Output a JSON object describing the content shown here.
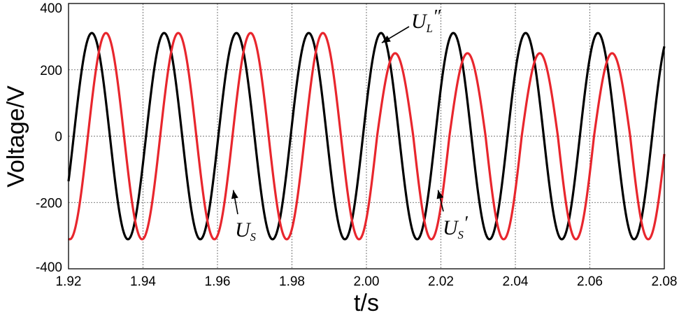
{
  "chart_data": {
    "type": "line",
    "title": "",
    "xlabel": "t/s",
    "ylabel": "Voltage/V",
    "xlim": [
      1.92,
      2.08
    ],
    "ylim": [
      -400,
      400
    ],
    "xticks": [
      "1.92",
      "1.94",
      "1.96",
      "1.98",
      "2.00",
      "2.02",
      "2.04",
      "2.06",
      "2.08"
    ],
    "yticks": [
      "400",
      "200",
      "0",
      "-200",
      "-400"
    ],
    "grid": true,
    "legend": "none",
    "series": [
      {
        "color": "#000000",
        "frequency_hz": 51.5,
        "amplitude_v": 311,
        "phase_offset_s": 1.9214
      },
      {
        "color": "#e8262d",
        "frequency_hz": 51.5,
        "phase_offset_s": 1.9252,
        "amplitude_before_2_00_v": 311,
        "positive_peak_after_2_00_v": 250,
        "negative_peak_after_2_00_v": -311
      }
    ],
    "annotations": [
      {
        "label": "U",
        "sub": "L",
        "mark": "″",
        "points_to": {
          "t": 2.003,
          "v": 311
        }
      },
      {
        "label": "U",
        "sub": "S",
        "mark": "",
        "points_to": {
          "t": 1.9635,
          "v": -150
        }
      },
      {
        "label": "U",
        "sub": "S",
        "mark": "′",
        "points_to": {
          "t": 2.0185,
          "v": -150
        }
      }
    ]
  }
}
